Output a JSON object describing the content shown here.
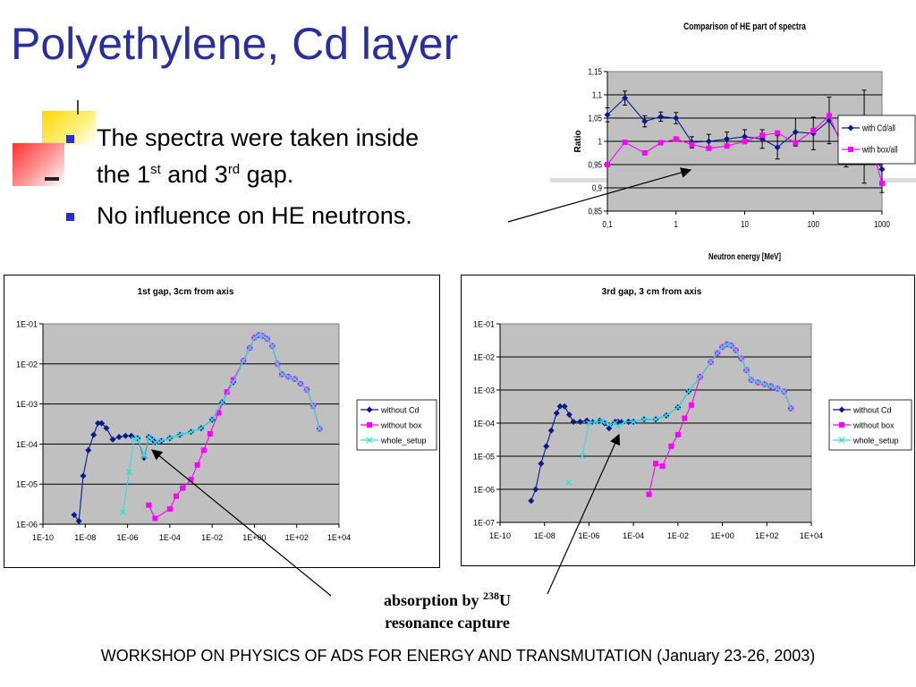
{
  "slide": {
    "title": "Polyethylene, Cd layer",
    "bullet1": {
      "pre": "The spectra were taken inside",
      "line2a": "the 1",
      "sup1": "st",
      "line2b": " and 3",
      "sup2": "rd",
      "line2c": " gap."
    },
    "bullet2": "No influence on HE neutrons.",
    "caption_line1a": "absorption by ",
    "caption_sup": "238",
    "caption_line1b": "U",
    "caption_line2": "resonance capture",
    "footer": "WORKSHOP ON PHYSICS OF ADS FOR ENERGY AND TRANSMUTATION (January 23-26, 2003)",
    "colors": {
      "title": "#2a2f9e",
      "bullet": "#2a2fc8",
      "series_cd": "#0a1a8c",
      "series_box": "#ff00ff",
      "series_whole": "#33dddd",
      "plot_bg": "#c0c0c0"
    }
  },
  "chart_data": [
    {
      "type": "line",
      "title": "Comparison of HE part of spectra",
      "xlabel": "Neutron energy [MeV]",
      "ylabel": "Ratio",
      "x_scale": "log",
      "xlim": [
        0.1,
        1000
      ],
      "ylim": [
        0.85,
        1.15
      ],
      "x_ticks": [
        "0,1",
        "1",
        "10",
        "100",
        "1000"
      ],
      "y_ticks": [
        "0,85",
        "0,9",
        "0,95",
        "1",
        "1,05",
        "1,1",
        "1,15"
      ],
      "grid": true,
      "legend": "right",
      "series": [
        {
          "name": "with Cd/all",
          "color": "#0a1a8c",
          "marker": "diamond",
          "x": [
            0.1,
            0.18,
            0.35,
            0.6,
            1.0,
            1.7,
            3.0,
            5.5,
            10,
            18,
            30,
            55,
            100,
            170,
            300,
            550,
            1000
          ],
          "y": [
            1.057,
            1.093,
            1.043,
            1.053,
            1.05,
            0.998,
            1.0,
            1.005,
            1.01,
            1.005,
            0.987,
            1.02,
            1.017,
            1.045,
            0.985,
            1.01,
            0.94
          ],
          "err": [
            0.015,
            0.015,
            0.012,
            0.01,
            0.012,
            0.012,
            0.015,
            0.015,
            0.015,
            0.02,
            0.025,
            0.03,
            0.035,
            0.05,
            0.04,
            0.1,
            0.05
          ]
        },
        {
          "name": "with box/all",
          "color": "#ff00ff",
          "marker": "square",
          "x": [
            0.1,
            0.18,
            0.35,
            0.6,
            1.0,
            1.7,
            3.0,
            5.5,
            10,
            18,
            30,
            55,
            100,
            170,
            300,
            550,
            1000
          ],
          "y": [
            0.95,
            0.998,
            0.975,
            0.997,
            1.005,
            0.993,
            0.985,
            0.99,
            1.0,
            1.013,
            1.018,
            0.997,
            1.023,
            1.055,
            0.97,
            1.047,
            0.91
          ],
          "err": []
        }
      ]
    },
    {
      "type": "line",
      "title": "1st gap, 3cm from axis",
      "x_scale": "log",
      "y_scale": "log",
      "xlim": [
        1e-10,
        10000
      ],
      "ylim": [
        1e-06,
        0.1
      ],
      "x_ticks": [
        "1E-10",
        "1E-08",
        "1E-06",
        "1E-04",
        "1E-02",
        "1E+00",
        "1E+02",
        "1E+04"
      ],
      "y_ticks": [
        "1E-06",
        "1E-05",
        "1E-04",
        "1E-03",
        "1E-02",
        "1E-01"
      ],
      "grid": true,
      "legend": "right",
      "series": [
        {
          "name": "without Cd",
          "color": "#0a1a8c",
          "marker": "diamond",
          "x": [
            3e-09,
            5e-09,
            8e-09,
            1.4e-08,
            2.5e-08,
            4e-08,
            6e-08,
            1e-07,
            2e-07,
            4e-07,
            8e-07,
            1.5e-06,
            3e-06,
            6e-06,
            1e-05,
            1.5e-05,
            2e-05,
            4e-05,
            0.0001,
            0.0003,
            0.001,
            0.003,
            0.01,
            0.03,
            0.1,
            0.3,
            0.6,
            1,
            1.6,
            2.5,
            4,
            7,
            12,
            20,
            40,
            80,
            150,
            300,
            600,
            1200
          ],
          "y": [
            1.7e-06,
            1.2e-06,
            1.6e-05,
            7e-05,
            0.00017,
            0.00033,
            0.00033,
            0.00025,
            0.00013,
            0.00015,
            0.00016,
            0.00016,
            0.00014,
            4.5e-05,
            0.00015,
            0.00013,
            0.00011,
            0.00012,
            0.00014,
            0.00017,
            0.0002,
            0.00025,
            0.0004,
            0.0011,
            0.0035,
            0.012,
            0.025,
            0.045,
            0.052,
            0.05,
            0.042,
            0.028,
            0.01,
            0.0055,
            0.0048,
            0.0042,
            0.0032,
            0.0023,
            0.0009,
            0.00024
          ]
        },
        {
          "name": "without box",
          "color": "#ff00ff",
          "marker": "square",
          "x": [
            1e-05,
            2e-05,
            0.0001,
            0.0002,
            0.0004,
            0.001,
            0.002,
            0.004,
            0.008,
            0.02,
            0.05,
            0.1,
            0.3,
            0.6,
            1,
            1.6,
            2.5,
            4,
            7,
            12,
            20,
            40,
            80,
            150,
            300,
            600,
            1200
          ],
          "y": [
            3e-06,
            1.4e-06,
            2.4e-06,
            5e-06,
            8e-06,
            1.3e-05,
            3e-05,
            7e-05,
            0.00018,
            0.0006,
            0.002,
            0.004,
            0.012,
            0.025,
            0.045,
            0.052,
            0.05,
            0.042,
            0.028,
            0.01,
            0.0055,
            0.0048,
            0.0042,
            0.0032,
            0.0023,
            0.0009,
            0.00024
          ]
        },
        {
          "name": "whole_setup",
          "color": "#33dddd",
          "marker": "x",
          "x": [
            6e-07,
            1.2e-06,
            2e-06,
            3e-06,
            6e-06,
            1e-05,
            1.5e-05,
            2e-05,
            4e-05,
            0.0001,
            0.0003,
            0.001,
            0.003,
            0.01,
            0.03,
            0.1,
            0.3,
            0.6,
            1,
            1.6,
            2.5,
            4,
            7,
            12,
            20,
            40,
            80,
            150,
            300,
            600,
            1200
          ],
          "y": [
            2e-06,
            2e-05,
            0.00013,
            0.00014,
            5e-05,
            0.00015,
            0.00013,
            0.00011,
            0.00012,
            0.00014,
            0.00017,
            0.0002,
            0.00025,
            0.0004,
            0.0011,
            0.0035,
            0.012,
            0.025,
            0.045,
            0.052,
            0.05,
            0.042,
            0.028,
            0.01,
            0.0055,
            0.0048,
            0.0042,
            0.0032,
            0.0023,
            0.0009,
            0.00024
          ]
        }
      ]
    },
    {
      "type": "line",
      "title": "3rd gap, 3 cm from axis",
      "x_scale": "log",
      "y_scale": "log",
      "xlim": [
        1e-10,
        10000
      ],
      "ylim": [
        1e-07,
        0.1
      ],
      "x_ticks": [
        "1E-10",
        "1E-08",
        "1E-06",
        "1E-04",
        "1E-02",
        "1E+00",
        "1E+02",
        "1E+04"
      ],
      "y_ticks": [
        "1E-07",
        "1E-06",
        "1E-05",
        "1E-04",
        "1E-03",
        "1E-02",
        "1E-01"
      ],
      "grid": true,
      "legend": "right",
      "series": [
        {
          "name": "without Cd",
          "color": "#0a1a8c",
          "marker": "diamond",
          "x": [
            2.5e-09,
            4e-09,
            7e-09,
            1.2e-08,
            2e-08,
            3.5e-08,
            5e-08,
            8e-08,
            1.3e-07,
            2e-07,
            4e-07,
            8e-07,
            1.5e-06,
            3e-06,
            5e-06,
            8e-06,
            1.5e-05,
            2e-05,
            3e-05,
            6e-05,
            0.0001,
            0.0003,
            0.001,
            0.003,
            0.01,
            0.03,
            0.1,
            0.3,
            0.6,
            1,
            1.6,
            2.5,
            4,
            7,
            12,
            20,
            40,
            80,
            150,
            300,
            600,
            1200
          ],
          "y": [
            4.5e-07,
            1e-06,
            6e-06,
            2e-05,
            6e-05,
            0.0002,
            0.00032,
            0.00032,
            0.00018,
            0.00011,
            0.00011,
            0.00012,
            0.00011,
            0.00012,
            0.0001,
            7e-05,
            0.00011,
            0.00011,
            0.00011,
            0.00011,
            0.00011,
            0.00013,
            0.00013,
            0.00017,
            0.0003,
            0.0009,
            0.0025,
            0.007,
            0.013,
            0.02,
            0.024,
            0.022,
            0.016,
            0.009,
            0.004,
            0.002,
            0.0017,
            0.0015,
            0.0013,
            0.0011,
            0.0009,
            0.00028
          ]
        },
        {
          "name": "without box",
          "color": "#ff00ff",
          "marker": "square",
          "x": [
            0.0005,
            0.001,
            0.002,
            0.005,
            0.01,
            0.02,
            0.04,
            0.1,
            0.3,
            0.6,
            1,
            1.6,
            2.5,
            4,
            7,
            12,
            20,
            40,
            80,
            150,
            300,
            600,
            1200
          ],
          "y": [
            7e-07,
            6e-06,
            5e-06,
            2e-05,
            4.5e-05,
            0.00014,
            0.00035,
            0.0025,
            0.007,
            0.013,
            0.02,
            0.024,
            0.022,
            0.016,
            0.009,
            0.004,
            0.002,
            0.0017,
            0.0015,
            0.0013,
            0.0011,
            0.0009,
            0.00028
          ]
        },
        {
          "name": "whole_setup",
          "color": "#33dddd",
          "marker": "x",
          "x": [
            5e-07,
            1e-06,
            2e-06,
            4e-06,
            8e-06,
            1.5e-05,
            2e-05,
            4e-05,
            0.0001,
            0.0003,
            0.001,
            0.003,
            0.01,
            0.03,
            0.1,
            0.3,
            0.6,
            1,
            1.6,
            2.5,
            4,
            7,
            12,
            20,
            40,
            80,
            150,
            300,
            600,
            1200
          ],
          "y": [
            1e-05,
            0.0001,
            0.00011,
            0.00011,
            9e-05,
            0.0001,
            8e-05,
            0.00011,
            0.00011,
            0.00013,
            0.00013,
            0.00017,
            0.0003,
            0.0009,
            0.0025,
            0.007,
            0.013,
            0.02,
            0.024,
            0.022,
            0.016,
            0.009,
            0.004,
            0.002,
            0.0017,
            0.0015,
            0.0013,
            0.0011,
            0.0009,
            0.00028
          ]
        },
        {
          "name": "",
          "color": "#33dddd",
          "marker": "x",
          "x": [
            1.2e-07
          ],
          "y": [
            1.6e-06
          ]
        }
      ]
    }
  ]
}
